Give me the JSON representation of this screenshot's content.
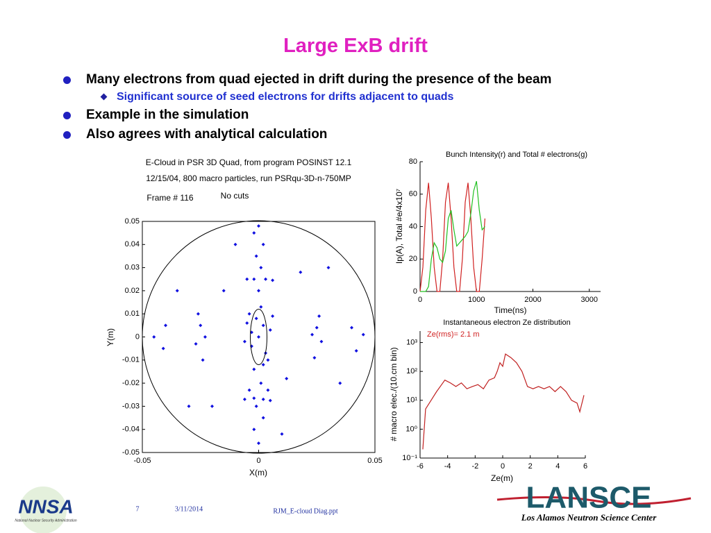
{
  "slide": {
    "title": "Large ExB drift",
    "bullets": [
      {
        "text": "Many electrons from quad ejected in drift during the presence of the beam",
        "sub": [
          "Significant source of seed electrons for drifts adjacent to quads"
        ]
      },
      {
        "text": "Example in the simulation"
      },
      {
        "text": "Also agrees with analytical calculation"
      }
    ],
    "footer": {
      "page": "7",
      "date": "3/11/2014",
      "file": "RJM_E-cloud Diag.ppt",
      "logo_left": "NNSA",
      "logo_left_caption": "National Nuclear Security Administration",
      "logo_right": "LANSCE",
      "logo_right_caption": "Los Alamos Neutron Science Center"
    }
  },
  "chart_data": [
    {
      "type": "scatter",
      "title": "E-Cloud in PSR 3D Quad, from program POSINST 12.1",
      "subtitle": "12/15/04, 800 macro particles, run PSRqu-3D-n-750MP",
      "annotations": [
        "Frame #  116",
        "No cuts"
      ],
      "x_label": "X(m)",
      "y_label": "Y(m)",
      "color": "#1010e0",
      "xlim": [
        -0.05,
        0.05
      ],
      "xticks": [
        -0.05,
        0,
        0.05
      ],
      "ylim": [
        -0.05,
        0.05
      ],
      "yticks": [
        0.05,
        0.04,
        0.03,
        0.02,
        0.01,
        0,
        -0.01,
        -0.02,
        -0.03,
        -0.04,
        -0.05
      ],
      "x": [
        0,
        0.002,
        -0.003,
        0.004,
        -0.004,
        0.001,
        -0.002,
        0.005,
        -0.006,
        0.003,
        -0.001,
        0.006,
        -0.005,
        0.002,
        -0.003,
        0,
        0.001,
        -0.001,
        0.002,
        -0.002,
        0,
        0.001,
        -0.001,
        0.002,
        -0.002,
        0,
        -0.005,
        -0.002,
        0.003,
        0.006,
        -0.006,
        -0.002,
        0.002,
        0.005,
        -0.004,
        0.004,
        -0.025,
        -0.027,
        -0.023,
        -0.026,
        -0.024,
        0.025,
        0.027,
        0.023,
        0.026,
        0.024,
        -0.04,
        -0.041,
        -0.045,
        0.04,
        0.042,
        0.045,
        -0.015,
        0.012,
        -0.02,
        0.018,
        -0.035,
        0.035,
        -0.01,
        0.01,
        0.03,
        -0.03
      ],
      "values": [
        0,
        0.005,
        -0.004,
        -0.01,
        0.01,
        0.013,
        -0.014,
        0.003,
        -0.002,
        -0.007,
        0.008,
        0.009,
        0.006,
        -0.012,
        0.002,
        0.02,
        0.03,
        0.035,
        0.04,
        0.045,
        0.048,
        -0.02,
        -0.03,
        -0.035,
        -0.04,
        -0.046,
        0.025,
        0.025,
        0.025,
        0.0245,
        -0.027,
        -0.0265,
        -0.027,
        -0.0275,
        -0.023,
        -0.023,
        0.005,
        -0.003,
        0,
        0.01,
        -0.01,
        0.004,
        -0.002,
        0.001,
        0.009,
        -0.009,
        0.005,
        -0.005,
        0,
        0.004,
        -0.006,
        0.001,
        0.02,
        -0.018,
        -0.03,
        0.028,
        0.02,
        -0.02,
        0.04,
        -0.042,
        0.03,
        -0.03
      ]
    },
    {
      "type": "line",
      "title": "Bunch Intensity(r) and Total # electrons(g)",
      "x_label": "Time(ns)",
      "y_label": "Ip(A), Total #e/4x10⁷",
      "xlim": [
        0,
        3200
      ],
      "xticks": [
        0,
        1000,
        2000,
        3000
      ],
      "ylim": [
        0,
        80
      ],
      "yticks": [
        0,
        20,
        40,
        60,
        80
      ],
      "x": [
        0,
        50,
        100,
        150,
        200,
        250,
        300,
        350,
        400,
        450,
        500,
        550,
        600,
        650,
        700,
        750,
        800,
        850,
        900,
        950,
        1000,
        1050,
        1100,
        1150
      ],
      "series": [
        {
          "color": "#d02020",
          "values": [
            0,
            15,
            50,
            67,
            45,
            15,
            0,
            0,
            20,
            55,
            67,
            45,
            15,
            0,
            0,
            20,
            55,
            67,
            45,
            15,
            0,
            0,
            20,
            45
          ]
        },
        {
          "color": "#20c020",
          "values": [
            0,
            0,
            0,
            3,
            20,
            30,
            27,
            20,
            18,
            25,
            45,
            50,
            38,
            28,
            30,
            32,
            34,
            37,
            48,
            62,
            68,
            50,
            38,
            40
          ]
        }
      ]
    },
    {
      "type": "line",
      "log_y": true,
      "title": "Instantaneous electron Ze distribution",
      "annotations": [
        "Ze(rms)= 2.1 m"
      ],
      "x_label": "Ze(m)",
      "y_label": "# macro elec./(10.cm bin)",
      "xlim": [
        -6,
        6
      ],
      "xticks": [
        -6,
        -4,
        -2,
        0,
        2,
        4,
        6
      ],
      "ylim": [
        0.1,
        2500
      ],
      "yticks": [
        {
          "value": 0.1,
          "label": "10⁻¹"
        },
        {
          "value": 1,
          "label": "10⁰"
        },
        {
          "value": 10,
          "label": "10¹"
        },
        {
          "value": 100,
          "label": "10²"
        },
        {
          "value": 1000,
          "label": "10³"
        }
      ],
      "x": [
        -5.8,
        -5.6,
        -5.2,
        -4.8,
        -4.2,
        -3.8,
        -3.4,
        -3,
        -2.6,
        -2.2,
        -1.8,
        -1.4,
        -1,
        -0.6,
        -0.4,
        -0.2,
        0,
        0.2,
        0.6,
        1,
        1.4,
        1.8,
        2.2,
        2.6,
        3,
        3.4,
        3.8,
        4.2,
        4.6,
        5,
        5.4,
        5.6,
        5.9
      ],
      "series": [
        {
          "color": "#c02020",
          "values": [
            0.2,
            5,
            10,
            20,
            50,
            40,
            30,
            40,
            25,
            30,
            35,
            25,
            50,
            60,
            100,
            200,
            150,
            400,
            300,
            200,
            100,
            30,
            25,
            30,
            25,
            30,
            20,
            30,
            20,
            10,
            8,
            4,
            15
          ]
        }
      ]
    }
  ]
}
